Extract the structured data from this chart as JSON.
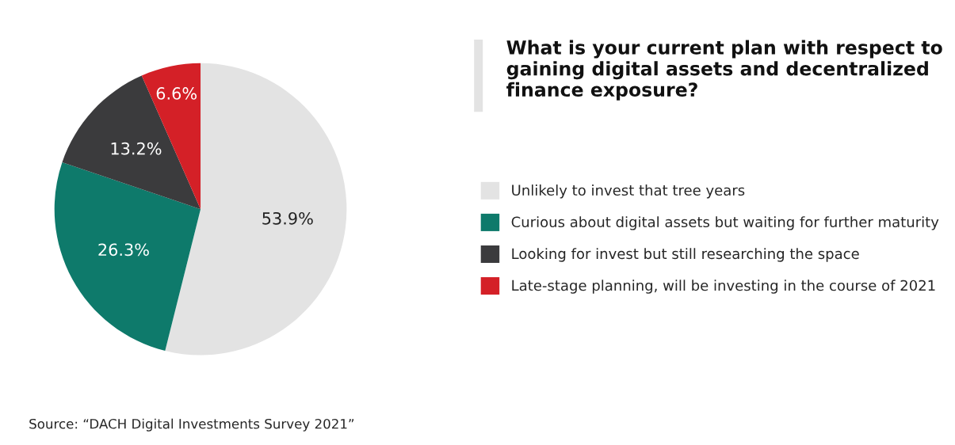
{
  "chart_data": {
    "type": "pie",
    "title": "What is your current plan with respect to gaining digital assets and decentralized finance exposure?",
    "categories": [
      "Unlikely to invest that tree years",
      "Curious about digital assets but waiting for further maturity",
      "Looking for invest but still researching the space",
      "Late-stage planning, will be investing in the course of 2021"
    ],
    "values": [
      53.9,
      26.3,
      13.2,
      6.6
    ],
    "value_labels": [
      "53.9%",
      "26.3%",
      "13.2%",
      "6.6%"
    ],
    "colors": [
      "#e3e3e3",
      "#0e7a6b",
      "#3b3b3d",
      "#d42027"
    ],
    "legend": "right",
    "annotations": [
      "Source: “DACH Digital Investments Survey 2021”"
    ]
  }
}
